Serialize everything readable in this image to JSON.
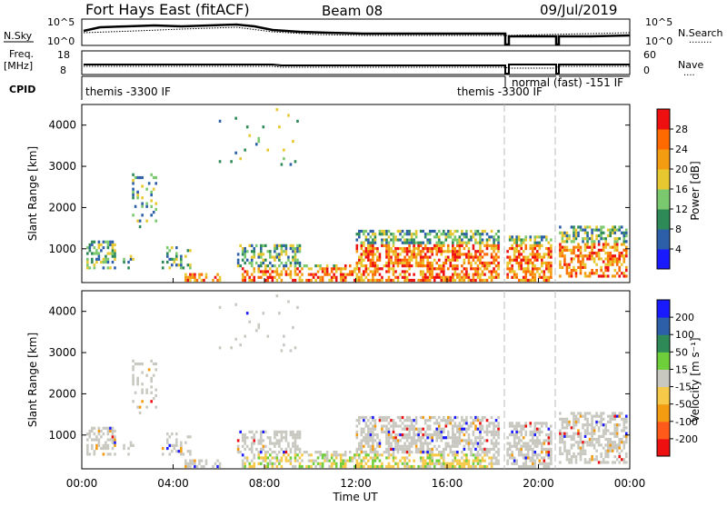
{
  "header": {
    "title": "Fort Hays East (fitACF)",
    "beam": "Beam 08",
    "date": "09/Jul/2019"
  },
  "top_panel": {
    "left_label": "N.Sky",
    "left_ticks": [
      "10^5",
      "10^0"
    ],
    "right_ticks": [
      "10^5",
      "10^0"
    ],
    "right_label": "N.Search",
    "right_legend": "........"
  },
  "freq_panel": {
    "left_label_1": "Freq.",
    "left_label_2": "[MHz]",
    "left_ticks": [
      "18",
      "8"
    ],
    "right_ticks": [
      "60",
      "0"
    ],
    "right_label": "Nave",
    "right_legend": "...."
  },
  "cpid_panel": {
    "label": "CPID",
    "segments": [
      {
        "label": "themis -3300 IF"
      },
      {
        "label": "themis -3300 IF"
      },
      {
        "label": "normal (fast) -151 IF"
      }
    ]
  },
  "chart_data": [
    {
      "type": "heatmap",
      "name": "power",
      "ylabel": "Slant Range [km]",
      "xlabel": "",
      "ylim": [
        180,
        4500
      ],
      "xlim": [
        "00:00",
        "24:00"
      ],
      "yticks": [
        "1000",
        "2000",
        "3000",
        "4000"
      ],
      "colorbar": {
        "label": "Power [dB]",
        "ticks": [
          "4",
          "8",
          "12",
          "16",
          "20",
          "24",
          "28"
        ],
        "range": [
          0,
          32
        ],
        "colors": [
          "#1a1aff",
          "#2c5fa8",
          "#2e8b57",
          "#7bc96f",
          "#e8c830",
          "#f39c12",
          "#ff6a00",
          "#ee1010"
        ]
      }
    },
    {
      "type": "heatmap",
      "name": "velocity",
      "ylabel": "Slant Range [km]",
      "xlabel": "Time UT",
      "ylim": [
        180,
        4500
      ],
      "xlim": [
        "00:00",
        "24:00"
      ],
      "yticks": [
        "1000",
        "2000",
        "3000",
        "4000"
      ],
      "xticks": [
        "00:00",
        "04:00",
        "08:00",
        "12:00",
        "16:00",
        "20:00",
        "00:00"
      ],
      "colorbar": {
        "label": "Velocity [m s⁻¹]",
        "ticks": [
          "200",
          "100",
          "50",
          "15",
          "-15",
          "-50",
          "-100",
          "-200"
        ],
        "colors": [
          "#1a1aff",
          "#2c5fa8",
          "#2e8b57",
          "#6fcf3a",
          "#c8c8c0",
          "#f7c948",
          "#f39c12",
          "#ff5a1a",
          "#ee1010"
        ]
      }
    }
  ]
}
